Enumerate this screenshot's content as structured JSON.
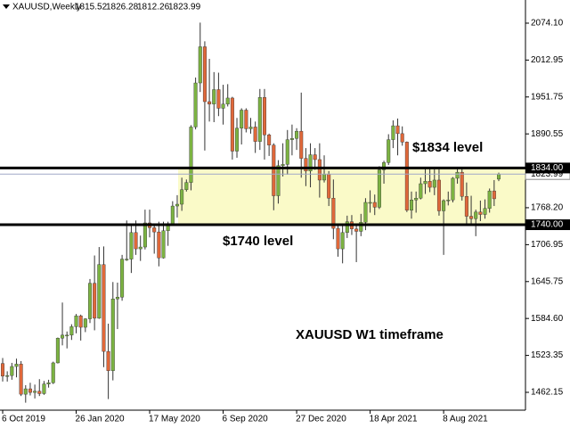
{
  "chart_data": {
    "type": "candlestick",
    "symbol": "XAUUSD,Weekly",
    "categories": [
      "6 Oct 2019",
      null,
      null,
      null,
      null,
      null,
      null,
      null,
      null,
      null,
      null,
      null,
      null,
      null,
      null,
      null,
      "26 Jan 2020",
      null,
      null,
      null,
      null,
      null,
      null,
      null,
      null,
      null,
      null,
      null,
      null,
      null,
      null,
      null,
      "17 May 2020",
      null,
      null,
      null,
      null,
      null,
      null,
      null,
      null,
      null,
      null,
      null,
      null,
      null,
      null,
      null,
      "6 Sep 2020",
      null,
      null,
      null,
      null,
      null,
      null,
      null,
      null,
      null,
      null,
      null,
      null,
      null,
      null,
      null,
      "27 Dec 2020",
      null,
      null,
      null,
      null,
      null,
      null,
      null,
      null,
      null,
      null,
      null,
      null,
      null,
      null,
      null,
      "18 Apr 2021",
      null,
      null,
      null,
      null,
      null,
      null,
      null,
      null,
      null,
      null,
      null,
      null,
      null,
      null,
      null,
      "8 Aug 2021",
      null,
      null,
      null,
      null,
      null,
      null,
      null,
      null,
      null,
      null,
      null,
      null
    ],
    "open": [
      1510,
      1489,
      1490,
      1505,
      1509,
      1459,
      1468,
      1462,
      1464,
      1460,
      1476,
      1478,
      1511,
      1552,
      1557,
      1557,
      1571,
      1589,
      1570,
      1584,
      1643,
      1585,
      1674,
      1530,
      1498,
      1617,
      1620,
      1683,
      1683,
      1727,
      1700,
      1703,
      1743,
      1735,
      1728,
      1685,
      1730,
      1742,
      1771,
      1774,
      1798,
      1810,
      1902,
      1975,
      2035,
      1944,
      1940,
      1964,
      1933,
      1940,
      1950,
      1862,
      1900,
      1930,
      1899,
      1902,
      1878,
      1951,
      1889,
      1872,
      1788,
      1838,
      1840,
      1881,
      1883,
      1895,
      1850,
      1829,
      1856,
      1848,
      1814,
      1824,
      1784,
      1734,
      1700,
      1727,
      1745,
      1733,
      1729,
      1744,
      1777,
      1777,
      1769,
      1831,
      1843,
      1881,
      1904,
      1891,
      1877,
      1764,
      1781,
      1784,
      1808,
      1812,
      1802,
      1814,
      1763,
      1780,
      1781,
      1817,
      1827,
      1787,
      1754,
      1750,
      1761,
      1757,
      1767,
      1796,
      1815.52
    ],
    "high": [
      1519,
      1497,
      1511,
      1518,
      1514,
      1474,
      1478,
      1475,
      1484,
      1481,
      1483,
      1513,
      1553,
      1611,
      1563,
      1575,
      1592,
      1591,
      1585,
      1650,
      1689,
      1703,
      1704,
      1576,
      1645,
      1644,
      1690,
      1747,
      1738,
      1747,
      1722,
      1765,
      1765,
      1740,
      1745,
      1745,
      1745,
      1779,
      1789,
      1818,
      1815,
      1905,
      1984,
      2075,
      2044,
      2015,
      1993,
      1992,
      1972,
      1973,
      1952,
      1917,
      1933,
      1933,
      1917,
      1911,
      1965,
      1965,
      1891,
      1875,
      1847,
      1875,
      1897,
      1906,
      1900,
      1959,
      1867,
      1875,
      1867,
      1875,
      1855,
      1829,
      1815,
      1740,
      1740,
      1755,
      1756,
      1742,
      1758,
      1784,
      1797,
      1790,
      1837,
      1846,
      1890,
      1913,
      1916,
      1903,
      1878,
      1795,
      1795,
      1818,
      1834,
      1834,
      1832,
      1832,
      1782,
      1795,
      1819,
      1834,
      1834,
      1810,
      1788,
      1765,
      1780,
      1782,
      1800,
      1814,
      1826.28
    ],
    "low": [
      1480,
      1480,
      1483,
      1487,
      1456,
      1445,
      1457,
      1452,
      1456,
      1458,
      1470,
      1476,
      1510,
      1540,
      1535,
      1549,
      1560,
      1548,
      1562,
      1577,
      1565,
      1584,
      1504,
      1451,
      1482,
      1567,
      1614,
      1680,
      1660,
      1690,
      1680,
      1699,
      1719,
      1692,
      1671,
      1684,
      1705,
      1740,
      1752,
      1763,
      1795,
      1797,
      1898,
      1960,
      1863,
      1911,
      1910,
      1920,
      1906,
      1936,
      1848,
      1851,
      1873,
      1893,
      1891,
      1859,
      1864,
      1848,
      1854,
      1764,
      1775,
      1820,
      1823,
      1855,
      1864,
      1818,
      1804,
      1802,
      1831,
      1785,
      1810,
      1771,
      1716,
      1687,
      1676,
      1718,
      1723,
      1678,
      1721,
      1731,
      1760,
      1756,
      1766,
      1808,
      1839,
      1867,
      1855,
      1871,
      1761,
      1750,
      1760,
      1782,
      1791,
      1794,
      1789,
      1755,
      1690,
      1772,
      1777,
      1808,
      1780,
      1742,
      1738,
      1721,
      1746,
      1750,
      1760,
      1771,
      1812.26
    ],
    "close": [
      1489,
      1490,
      1505,
      1509,
      1459,
      1468,
      1462,
      1464,
      1460,
      1476,
      1478,
      1511,
      1552,
      1557,
      1557,
      1571,
      1589,
      1570,
      1584,
      1643,
      1585,
      1674,
      1530,
      1498,
      1617,
      1620,
      1683,
      1683,
      1727,
      1700,
      1703,
      1743,
      1735,
      1728,
      1685,
      1730,
      1742,
      1771,
      1774,
      1798,
      1810,
      1902,
      1975,
      2035,
      1944,
      1940,
      1964,
      1933,
      1940,
      1950,
      1862,
      1900,
      1930,
      1899,
      1902,
      1878,
      1951,
      1889,
      1872,
      1788,
      1838,
      1840,
      1881,
      1883,
      1895,
      1850,
      1829,
      1856,
      1848,
      1814,
      1824,
      1784,
      1734,
      1700,
      1727,
      1745,
      1733,
      1729,
      1744,
      1777,
      1777,
      1769,
      1831,
      1843,
      1881,
      1904,
      1891,
      1877,
      1764,
      1781,
      1784,
      1808,
      1812,
      1802,
      1814,
      1763,
      1780,
      1781,
      1817,
      1827,
      1787,
      1754,
      1750,
      1761,
      1757,
      1767,
      1796,
      1783,
      1823.99
    ],
    "up_color": "#7cb342",
    "down_color": "#e0683a",
    "ylim": [
      1432.6,
      2112.5
    ],
    "yticks": [
      {
        "value": 2074.1,
        "label": "2074.10"
      },
      2012.95,
      1951.75,
      1890.55,
      {
        "value": 1768.2,
        "label": "1768.20"
      },
      1706.95,
      1645.75,
      {
        "value": 1584.6,
        "label": "1584.60"
      },
      1523.35,
      1462.15
    ],
    "levels": [
      {
        "value": 1834,
        "label": "1834.00"
      },
      {
        "value": 1740,
        "label": "1740.00"
      }
    ],
    "zone_color": "#fafac8",
    "annotations": [
      "$1834 level",
      "$1740 level",
      "XAUUSD W1 timeframe"
    ]
  }
}
